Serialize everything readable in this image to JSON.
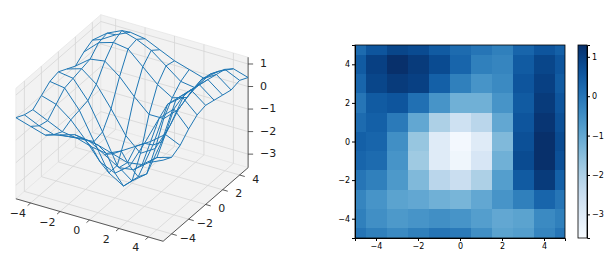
{
  "chart_data": [
    {
      "type": "wireframe",
      "color": "#1f77b4",
      "grid": true,
      "x": [
        -5,
        -4,
        -3,
        -2,
        -1,
        0,
        1,
        2,
        3,
        4,
        5
      ],
      "y": [
        5,
        4,
        3,
        2,
        1,
        0,
        -1,
        -2,
        -3,
        -4,
        -5
      ],
      "z": [
        [
          0.2,
          0.6,
          0.9,
          0.8,
          0.5,
          0.2,
          0.0,
          -0.2,
          0.3,
          0.6,
          0.4
        ],
        [
          0.5,
          1.0,
          1.3,
          1.1,
          0.8,
          0.3,
          -0.2,
          -0.3,
          0.5,
          0.9,
          0.6
        ],
        [
          0.3,
          0.9,
          1.1,
          1.0,
          0.4,
          -0.2,
          -0.6,
          -0.4,
          0.6,
          1.0,
          0.5
        ],
        [
          0.0,
          0.5,
          0.6,
          0.1,
          -0.6,
          -1.2,
          -1.2,
          -0.6,
          0.5,
          1.1,
          0.6
        ],
        [
          0.2,
          0.4,
          -0.1,
          -1.0,
          -2.0,
          -2.6,
          -2.2,
          -1.0,
          0.6,
          1.2,
          0.7
        ],
        [
          0.4,
          0.3,
          -0.5,
          -1.7,
          -3.0,
          -3.5,
          -3.0,
          -1.4,
          0.7,
          1.3,
          0.8
        ],
        [
          0.3,
          0.2,
          -0.6,
          -1.8,
          -3.0,
          -3.4,
          -2.8,
          -1.2,
          0.8,
          1.3,
          0.7
        ],
        [
          0.0,
          -0.2,
          -0.7,
          -1.4,
          -2.2,
          -2.5,
          -2.0,
          -0.8,
          0.5,
          1.1,
          0.4
        ],
        [
          -0.3,
          -0.6,
          -0.9,
          -1.0,
          -1.2,
          -1.3,
          -1.0,
          -0.6,
          -0.2,
          0.3,
          0.0
        ],
        [
          -0.2,
          -0.5,
          -0.7,
          -0.6,
          -0.5,
          -0.6,
          -0.8,
          -1.0,
          -0.9,
          -0.4,
          -0.2
        ],
        [
          0.0,
          -0.2,
          -0.4,
          -0.2,
          0.0,
          -0.1,
          -0.5,
          -0.9,
          -0.8,
          -0.3,
          0.0
        ]
      ],
      "xlim": [
        -5,
        5
      ],
      "ylim": [
        -5,
        5
      ],
      "zlim": [
        -3.6,
        1.3
      ],
      "xticks": [
        {
          "value": -4,
          "label": "−4"
        },
        {
          "value": -2,
          "label": "−2"
        },
        0,
        2,
        4
      ],
      "yticks": [
        {
          "value": -4,
          "label": "−4"
        },
        {
          "value": -2,
          "label": "−2"
        },
        0,
        2,
        4
      ],
      "zticks": [
        {
          "value": -3,
          "label": "−3"
        },
        {
          "value": -2,
          "label": "−2"
        },
        {
          "value": -1,
          "label": "−1"
        },
        0,
        1
      ]
    },
    {
      "type": "heatmap",
      "color": "Blues",
      "x": [
        -5,
        -4,
        -3,
        -2,
        -1,
        0,
        1,
        2,
        3,
        4,
        5
      ],
      "y": [
        5,
        4,
        3,
        2,
        1,
        0,
        -1,
        -2,
        -3,
        -4,
        -5
      ],
      "z": [
        [
          0.2,
          0.6,
          0.9,
          0.8,
          0.5,
          0.2,
          0.0,
          -0.2,
          0.3,
          0.6,
          0.4
        ],
        [
          0.5,
          1.0,
          1.3,
          1.1,
          0.8,
          0.3,
          -0.2,
          -0.3,
          0.5,
          0.9,
          0.6
        ],
        [
          0.3,
          0.9,
          1.1,
          1.0,
          0.4,
          -0.2,
          -0.6,
          -0.4,
          0.6,
          1.0,
          0.5
        ],
        [
          0.0,
          0.5,
          0.6,
          0.1,
          -0.6,
          -1.2,
          -1.2,
          -0.6,
          0.5,
          1.1,
          0.6
        ],
        [
          0.2,
          0.4,
          -0.1,
          -1.0,
          -2.0,
          -2.6,
          -2.2,
          -1.0,
          0.6,
          1.2,
          0.7
        ],
        [
          0.4,
          0.3,
          -0.5,
          -1.7,
          -3.0,
          -3.5,
          -3.0,
          -1.4,
          0.7,
          1.3,
          0.8
        ],
        [
          0.3,
          0.2,
          -0.6,
          -1.8,
          -3.0,
          -3.4,
          -2.8,
          -1.2,
          0.8,
          1.3,
          0.7
        ],
        [
          0.0,
          -0.2,
          -0.7,
          -1.4,
          -2.2,
          -2.5,
          -2.0,
          -0.8,
          0.5,
          1.1,
          0.4
        ],
        [
          -0.3,
          -0.6,
          -0.9,
          -1.0,
          -1.2,
          -1.3,
          -1.0,
          -0.6,
          -0.2,
          0.3,
          0.0
        ],
        [
          -0.2,
          -0.5,
          -0.7,
          -0.6,
          -0.5,
          -0.6,
          -0.8,
          -1.0,
          -0.9,
          -0.4,
          -0.2
        ],
        [
          0.0,
          -0.2,
          -0.4,
          -0.2,
          0.0,
          -0.1,
          -0.5,
          -0.9,
          -0.8,
          -0.3,
          0.0
        ]
      ],
      "xlim": [
        -5,
        5
      ],
      "ylim": [
        -5,
        5
      ],
      "xticks": [
        {
          "value": -4,
          "label": "−4"
        },
        {
          "value": -2,
          "label": "−2"
        },
        0,
        2,
        4
      ],
      "yticks": [
        {
          "value": -4,
          "label": "−4"
        },
        {
          "value": -2,
          "label": "−2"
        },
        0,
        2,
        4
      ],
      "colorbar": {
        "range": [
          -3.6,
          1.3
        ],
        "ticks": [
          {
            "value": -3,
            "label": "−3"
          },
          {
            "value": -2,
            "label": "−2"
          },
          {
            "value": -1,
            "label": "−1"
          },
          0,
          1
        ]
      }
    }
  ]
}
